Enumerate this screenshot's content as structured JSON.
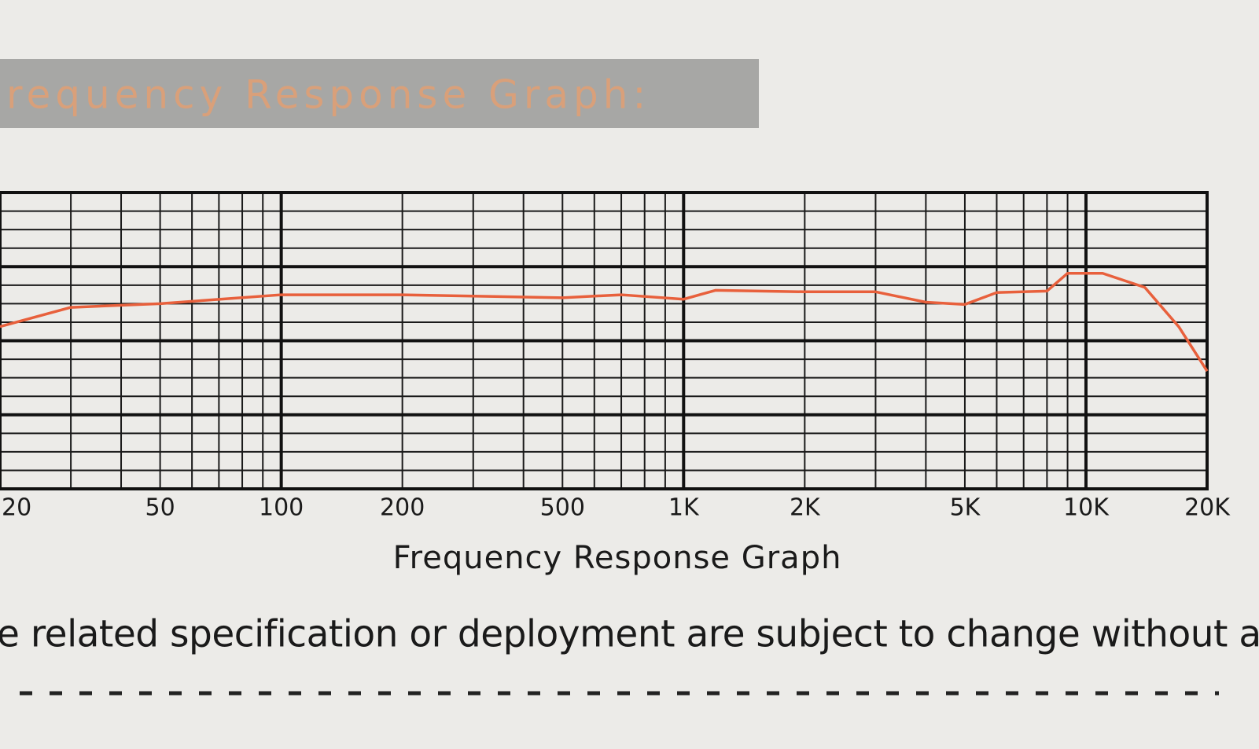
{
  "chart_data": {
    "type": "line",
    "title": "requency Response Graph:",
    "xlabel": "Frequency Response Graph",
    "note": "e related specification or deployment are subject to change without any pr",
    "xscale": "log",
    "xlim": [
      20,
      20000
    ],
    "xticks": [
      {
        "value": 20,
        "label": "20"
      },
      50,
      100,
      200,
      500,
      {
        "value": 1000,
        "label": "1K"
      },
      {
        "value": 2000,
        "label": "2K"
      },
      {
        "value": 5000,
        "label": "5K"
      },
      {
        "value": 10000,
        "label": "10K"
      },
      {
        "value": 20000,
        "label": "20K"
      }
    ],
    "ylim": [
      0,
      40
    ],
    "yticks": [
      0,
      10,
      20,
      30,
      40
    ],
    "grid": true,
    "x": [
      20,
      30,
      50,
      100,
      200,
      500,
      700,
      1000,
      1200,
      2000,
      3000,
      4000,
      5000,
      6000,
      8000,
      9000,
      11000,
      14000,
      17000,
      20000
    ],
    "series": [
      {
        "color": "#e8603c",
        "values": [
          21.9,
          24.5,
          25,
          26.2,
          26.2,
          25.8,
          26.2,
          25.6,
          26.8,
          26.6,
          26.6,
          25.2,
          24.9,
          26.5,
          26.7,
          29.1,
          29.1,
          27.2,
          21.9,
          15.9
        ]
      }
    ]
  }
}
